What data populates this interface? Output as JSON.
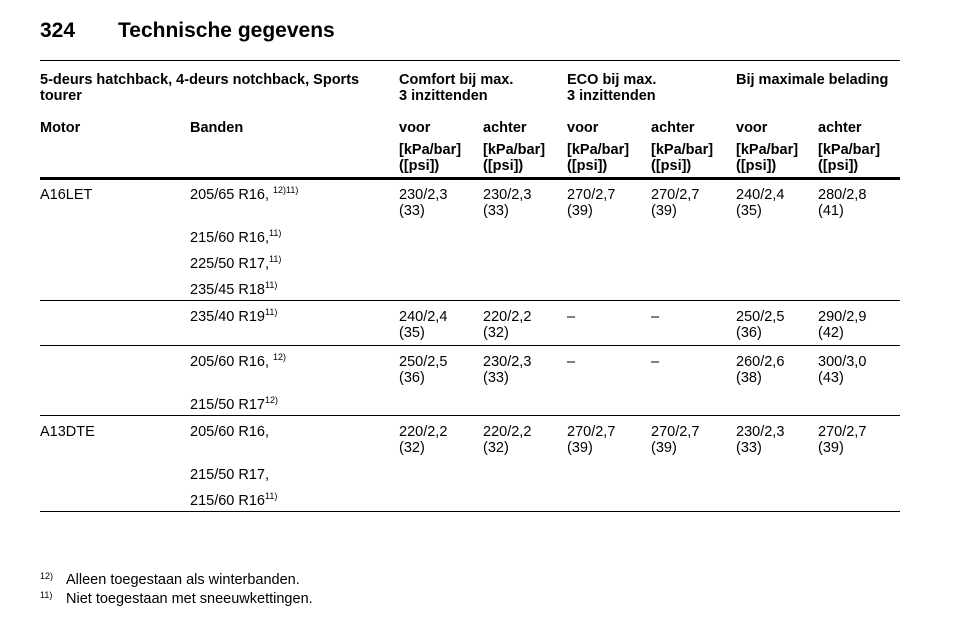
{
  "header": {
    "page_number": "324",
    "title": "Technische gegevens"
  },
  "table": {
    "group_headers": [
      [
        "5-deurs hatchback, 4-deurs notchback, Sports",
        "tourer"
      ],
      [
        "Comfort bij max.",
        "3 inzittenden"
      ],
      [
        "ECO bij max.",
        "3 inzittenden"
      ],
      [
        "Bij maximale belading"
      ]
    ],
    "columns": [
      "Motor",
      "Banden",
      "voor",
      "achter",
      "voor",
      "achter",
      "voor",
      "achter"
    ],
    "units": [
      [
        "[kPa/bar]",
        "([psi])"
      ],
      [
        "[kPa/bar]",
        "([psi])"
      ],
      [
        "[kPa/bar]",
        "([psi])"
      ],
      [
        "[kPa/bar]",
        "([psi])"
      ],
      [
        "[kPa/bar]",
        "([psi])"
      ],
      [
        "[kPa/bar]",
        "([psi])"
      ]
    ],
    "sections": [
      {
        "motor": "A16LET",
        "groups": [
          {
            "tires": [
              {
                "size": "205/65 R16, ",
                "note": "12)11)"
              },
              {
                "size": "215/60 R16,",
                "note": "11)"
              },
              {
                "size": "225/50 R17,",
                "note": "11)"
              },
              {
                "size": "235/45 R18",
                "note": "11)"
              }
            ],
            "pressures": [
              [
                "230/2,3",
                "(33)"
              ],
              [
                "230/2,3",
                "(33)"
              ],
              [
                "270/2,7",
                "(39)"
              ],
              [
                "270/2,7",
                "(39)"
              ],
              [
                "240/2,4",
                "(35)"
              ],
              [
                "280/2,8",
                "(41)"
              ]
            ]
          },
          {
            "tires": [
              {
                "size": "235/40 R19",
                "note": "11)"
              }
            ],
            "pressures": [
              [
                "240/2,4",
                "(35)"
              ],
              [
                "220/2,2",
                "(32)"
              ],
              [
                "–"
              ],
              [
                "–"
              ],
              [
                "250/2,5",
                "(36)"
              ],
              [
                "290/2,9",
                "(42)"
              ]
            ]
          },
          {
            "tires": [
              {
                "size": "205/60 R16, ",
                "note": "12)"
              },
              {
                "size": "215/50 R17",
                "note": "12)"
              }
            ],
            "pressures": [
              [
                "250/2,5",
                "(36)"
              ],
              [
                "230/2,3",
                "(33)"
              ],
              [
                "–"
              ],
              [
                "–"
              ],
              [
                "260/2,6",
                "(38)"
              ],
              [
                "300/3,0",
                "(43)"
              ]
            ]
          }
        ]
      },
      {
        "motor": "A13DTE",
        "groups": [
          {
            "tires": [
              {
                "size": "205/60 R16,"
              },
              {
                "size": "215/50 R17,"
              },
              {
                "size": "215/60 R16",
                "note": "11)"
              }
            ],
            "pressures": [
              [
                "220/2,2",
                "(32)"
              ],
              [
                "220/2,2",
                "(32)"
              ],
              [
                "270/2,7",
                "(39)"
              ],
              [
                "270/2,7",
                "(39)"
              ],
              [
                "230/2,3",
                "(33)"
              ],
              [
                "270/2,7",
                "(39)"
              ]
            ]
          }
        ]
      }
    ]
  },
  "footnotes": [
    {
      "mark": "12)",
      "text": "Alleen toegestaan als winterbanden."
    },
    {
      "mark": "11)",
      "text": "Niet toegestaan met sneeuwkettingen."
    }
  ]
}
